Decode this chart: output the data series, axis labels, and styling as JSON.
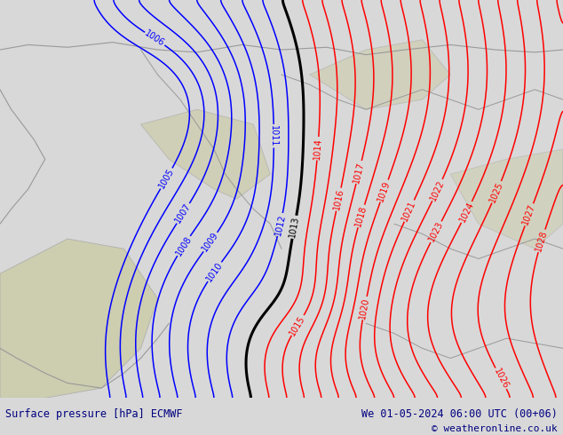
{
  "title_left": "Surface pressure [hPa] ECMWF",
  "title_right": "We 01-05-2024 06:00 UTC (00+06)",
  "copyright": "© weatheronline.co.uk",
  "bg_color": "#aadd55",
  "land_color": "#aadd55",
  "terrain_color": "#ccccaa",
  "bottom_bar_color": "#d8d8d8",
  "bottom_text_color": "#000080",
  "fig_width": 6.34,
  "fig_height": 4.9,
  "dpi": 100,
  "isobar_step": 1,
  "blue_max": 1012,
  "black_val": 1013,
  "red_min": 1014,
  "red_max": 1028
}
